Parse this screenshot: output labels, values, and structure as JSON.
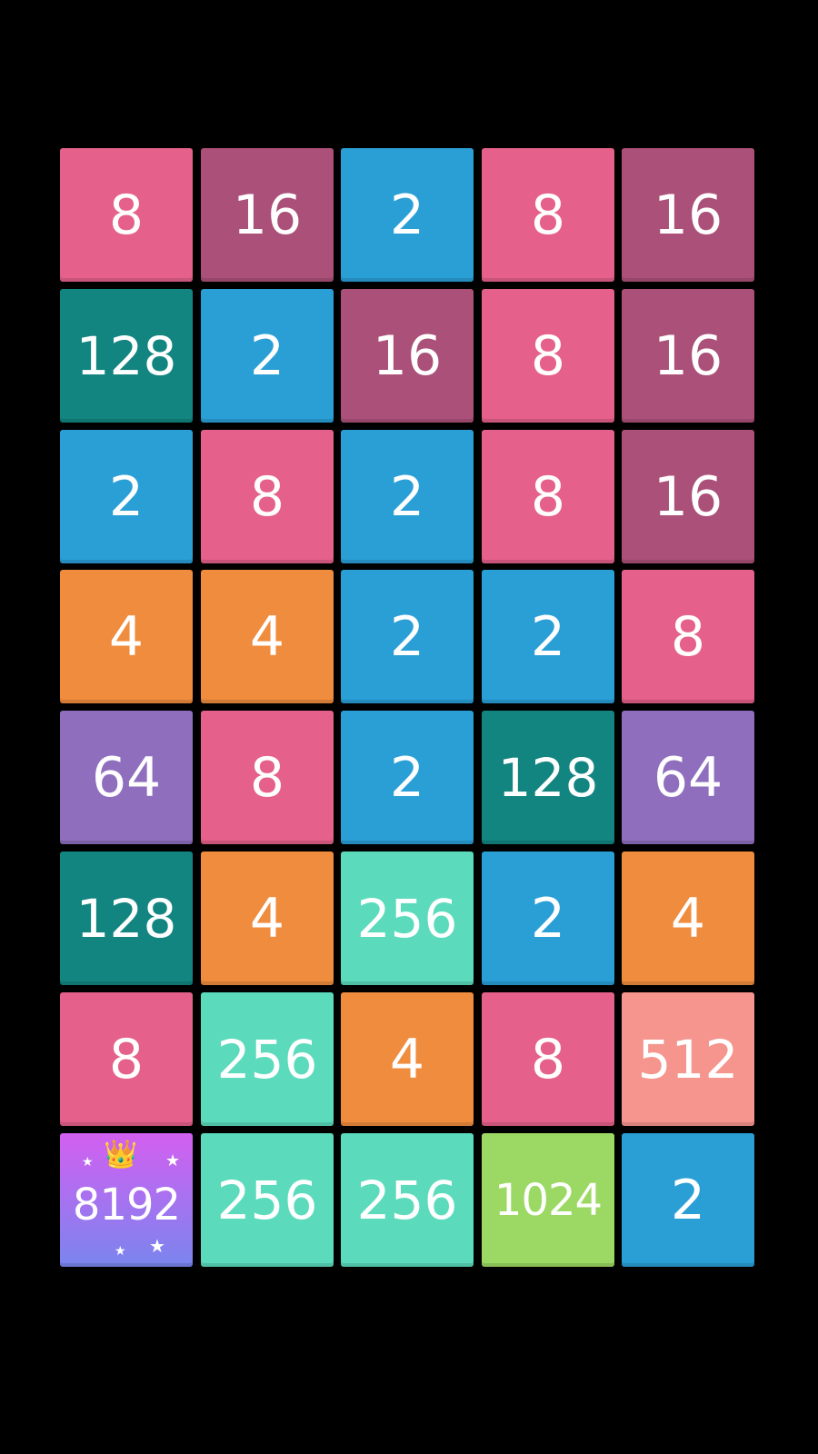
{
  "board": {
    "rows": [
      [
        8,
        16,
        2,
        8,
        16
      ],
      [
        128,
        2,
        16,
        8,
        16
      ],
      [
        2,
        8,
        2,
        8,
        16
      ],
      [
        4,
        4,
        2,
        2,
        8
      ],
      [
        64,
        8,
        2,
        128,
        64
      ],
      [
        128,
        4,
        256,
        2,
        4
      ],
      [
        8,
        256,
        4,
        8,
        512
      ],
      [
        8192,
        256,
        256,
        1024,
        2
      ]
    ],
    "special_tile": {
      "value": 8192,
      "icon": "crown-icon",
      "decoration": "star-icon"
    }
  },
  "colors": {
    "2": "#2a9fd6",
    "4": "#f08c3e",
    "8": "#e5608a",
    "16": "#ab5078",
    "64": "#8f6fbd",
    "128": "#138580",
    "256": "#5cdbbc",
    "512": "#f5958e",
    "1024": "#9cd964",
    "8192": "linear-gradient(180deg,#d35ff0,#7a85ef)",
    "background": "#000000"
  }
}
